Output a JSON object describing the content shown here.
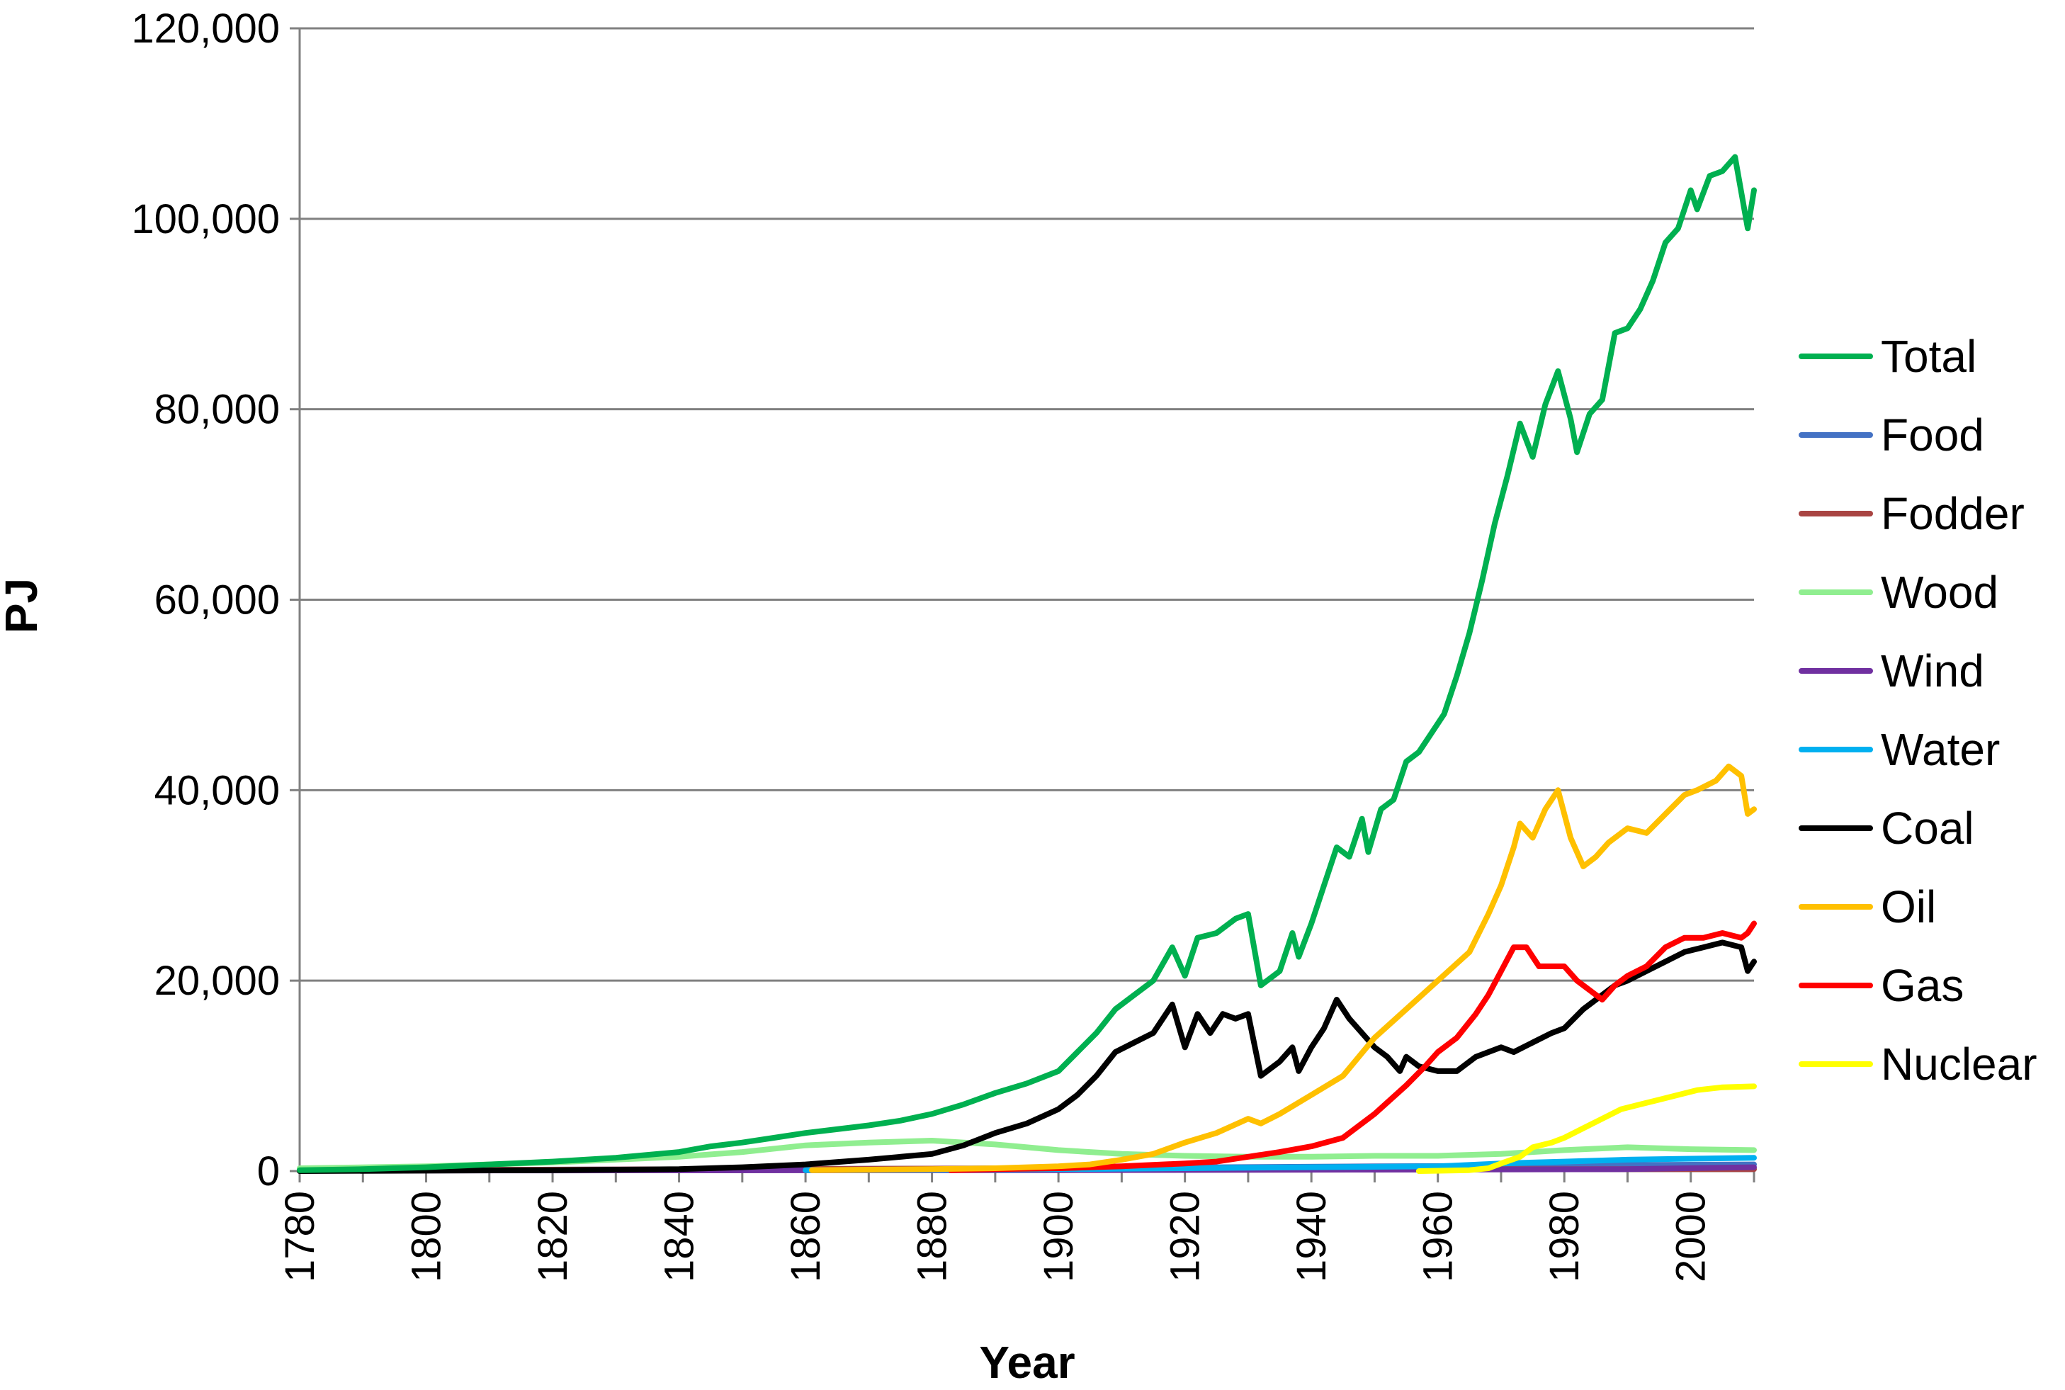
{
  "chart_data": {
    "type": "line",
    "title": "",
    "xlabel": "Year",
    "ylabel": "PJ",
    "xlim": [
      1780,
      2010
    ],
    "ylim": [
      0,
      120000
    ],
    "x_ticks": [
      "1780",
      "1800",
      "1820",
      "1840",
      "1860",
      "1880",
      "1900",
      "1920",
      "1940",
      "1960",
      "1980",
      "2000"
    ],
    "y_ticks": [
      "0",
      "20,000",
      "40,000",
      "60,000",
      "80,000",
      "100,000",
      "120,000"
    ],
    "grid": "horizontal",
    "legend_position": "right",
    "series": [
      {
        "name": "Total",
        "color": "#00b050",
        "points": [
          [
            1780,
            100
          ],
          [
            1790,
            200
          ],
          [
            1800,
            400
          ],
          [
            1810,
            700
          ],
          [
            1820,
            1000
          ],
          [
            1830,
            1400
          ],
          [
            1840,
            2000
          ],
          [
            1845,
            2600
          ],
          [
            1850,
            3000
          ],
          [
            1855,
            3500
          ],
          [
            1860,
            4000
          ],
          [
            1865,
            4400
          ],
          [
            1870,
            4800
          ],
          [
            1875,
            5300
          ],
          [
            1880,
            6000
          ],
          [
            1885,
            7000
          ],
          [
            1890,
            8200
          ],
          [
            1895,
            9200
          ],
          [
            1900,
            10500
          ],
          [
            1903,
            12500
          ],
          [
            1906,
            14500
          ],
          [
            1909,
            17000
          ],
          [
            1912,
            18500
          ],
          [
            1915,
            20000
          ],
          [
            1918,
            23500
          ],
          [
            1920,
            20500
          ],
          [
            1922,
            24500
          ],
          [
            1925,
            25000
          ],
          [
            1928,
            26500
          ],
          [
            1930,
            27000
          ],
          [
            1932,
            19500
          ],
          [
            1935,
            21000
          ],
          [
            1937,
            25000
          ],
          [
            1938,
            22500
          ],
          [
            1940,
            26000
          ],
          [
            1942,
            30000
          ],
          [
            1944,
            34000
          ],
          [
            1946,
            33000
          ],
          [
            1948,
            37000
          ],
          [
            1949,
            33500
          ],
          [
            1951,
            38000
          ],
          [
            1953,
            39000
          ],
          [
            1955,
            43000
          ],
          [
            1957,
            44000
          ],
          [
            1959,
            46000
          ],
          [
            1961,
            48000
          ],
          [
            1963,
            52000
          ],
          [
            1965,
            56500
          ],
          [
            1967,
            62000
          ],
          [
            1969,
            68000
          ],
          [
            1971,
            73000
          ],
          [
            1973,
            78500
          ],
          [
            1975,
            75000
          ],
          [
            1977,
            80500
          ],
          [
            1979,
            84000
          ],
          [
            1981,
            79000
          ],
          [
            1982,
            75500
          ],
          [
            1984,
            79500
          ],
          [
            1986,
            81000
          ],
          [
            1988,
            88000
          ],
          [
            1990,
            88500
          ],
          [
            1992,
            90500
          ],
          [
            1994,
            93500
          ],
          [
            1996,
            97500
          ],
          [
            1998,
            99000
          ],
          [
            2000,
            103000
          ],
          [
            2001,
            101000
          ],
          [
            2003,
            104500
          ],
          [
            2005,
            105000
          ],
          [
            2007,
            106500
          ],
          [
            2009,
            99000
          ],
          [
            2010,
            103000
          ]
        ]
      },
      {
        "name": "Food",
        "color": "#4472c4",
        "points": [
          [
            1780,
            100
          ],
          [
            1850,
            200
          ],
          [
            1900,
            300
          ],
          [
            1950,
            500
          ],
          [
            2010,
            700
          ]
        ]
      },
      {
        "name": "Fodder",
        "color": "#a94442",
        "points": [
          [
            1780,
            100
          ],
          [
            1850,
            200
          ],
          [
            1900,
            300
          ],
          [
            1950,
            200
          ],
          [
            2010,
            200
          ]
        ]
      },
      {
        "name": "Wood",
        "color": "#90ee90",
        "points": [
          [
            1780,
            300
          ],
          [
            1800,
            500
          ],
          [
            1820,
            900
          ],
          [
            1840,
            1500
          ],
          [
            1850,
            2000
          ],
          [
            1860,
            2700
          ],
          [
            1870,
            3000
          ],
          [
            1880,
            3200
          ],
          [
            1890,
            2800
          ],
          [
            1900,
            2200
          ],
          [
            1910,
            1800
          ],
          [
            1920,
            1600
          ],
          [
            1930,
            1500
          ],
          [
            1940,
            1500
          ],
          [
            1950,
            1600
          ],
          [
            1960,
            1600
          ],
          [
            1970,
            1800
          ],
          [
            1980,
            2200
          ],
          [
            1990,
            2500
          ],
          [
            2000,
            2300
          ],
          [
            2010,
            2200
          ]
        ]
      },
      {
        "name": "Wind",
        "color": "#7030a0",
        "points": [
          [
            1780,
            50
          ],
          [
            1900,
            100
          ],
          [
            1950,
            150
          ],
          [
            1990,
            200
          ],
          [
            2010,
            400
          ]
        ]
      },
      {
        "name": "Water",
        "color": "#00b0f0",
        "points": [
          [
            1860,
            100
          ],
          [
            1900,
            200
          ],
          [
            1920,
            300
          ],
          [
            1940,
            400
          ],
          [
            1960,
            500
          ],
          [
            1970,
            800
          ],
          [
            1980,
            1000
          ],
          [
            1990,
            1200
          ],
          [
            2000,
            1300
          ],
          [
            2010,
            1400
          ]
        ]
      },
      {
        "name": "Coal",
        "color": "#000000",
        "points": [
          [
            1780,
            0
          ],
          [
            1820,
            100
          ],
          [
            1840,
            200
          ],
          [
            1850,
            400
          ],
          [
            1860,
            700
          ],
          [
            1870,
            1200
          ],
          [
            1880,
            1800
          ],
          [
            1885,
            2700
          ],
          [
            1890,
            4000
          ],
          [
            1895,
            5000
          ],
          [
            1900,
            6500
          ],
          [
            1903,
            8000
          ],
          [
            1906,
            10000
          ],
          [
            1909,
            12500
          ],
          [
            1912,
            13500
          ],
          [
            1915,
            14500
          ],
          [
            1918,
            17500
          ],
          [
            1920,
            13000
          ],
          [
            1922,
            16500
          ],
          [
            1924,
            14500
          ],
          [
            1926,
            16500
          ],
          [
            1928,
            16000
          ],
          [
            1930,
            16500
          ],
          [
            1932,
            10000
          ],
          [
            1935,
            11500
          ],
          [
            1937,
            13000
          ],
          [
            1938,
            10500
          ],
          [
            1940,
            13000
          ],
          [
            1942,
            15000
          ],
          [
            1944,
            18000
          ],
          [
            1946,
            16000
          ],
          [
            1948,
            14500
          ],
          [
            1950,
            13000
          ],
          [
            1952,
            12000
          ],
          [
            1954,
            10500
          ],
          [
            1955,
            12000
          ],
          [
            1957,
            11000
          ],
          [
            1960,
            10500
          ],
          [
            1963,
            10500
          ],
          [
            1966,
            12000
          ],
          [
            1970,
            13000
          ],
          [
            1972,
            12500
          ],
          [
            1975,
            13500
          ],
          [
            1978,
            14500
          ],
          [
            1980,
            15000
          ],
          [
            1983,
            17000
          ],
          [
            1986,
            18500
          ],
          [
            1988,
            19500
          ],
          [
            1990,
            20000
          ],
          [
            1993,
            21000
          ],
          [
            1996,
            22000
          ],
          [
            1999,
            23000
          ],
          [
            2002,
            23500
          ],
          [
            2005,
            24000
          ],
          [
            2008,
            23500
          ],
          [
            2009,
            21000
          ],
          [
            2010,
            22000
          ]
        ]
      },
      {
        "name": "Oil",
        "color": "#ffc000",
        "points": [
          [
            1861,
            100
          ],
          [
            1880,
            200
          ],
          [
            1890,
            300
          ],
          [
            1900,
            500
          ],
          [
            1905,
            700
          ],
          [
            1910,
            1200
          ],
          [
            1915,
            1800
          ],
          [
            1920,
            3000
          ],
          [
            1925,
            4000
          ],
          [
            1930,
            5500
          ],
          [
            1932,
            5000
          ],
          [
            1935,
            6000
          ],
          [
            1940,
            8000
          ],
          [
            1945,
            10000
          ],
          [
            1950,
            14000
          ],
          [
            1955,
            17000
          ],
          [
            1960,
            20000
          ],
          [
            1965,
            23000
          ],
          [
            1968,
            27000
          ],
          [
            1970,
            30000
          ],
          [
            1972,
            34000
          ],
          [
            1973,
            36500
          ],
          [
            1975,
            35000
          ],
          [
            1977,
            38000
          ],
          [
            1979,
            40000
          ],
          [
            1981,
            35000
          ],
          [
            1983,
            32000
          ],
          [
            1985,
            33000
          ],
          [
            1987,
            34500
          ],
          [
            1990,
            36000
          ],
          [
            1993,
            35500
          ],
          [
            1996,
            37500
          ],
          [
            1999,
            39500
          ],
          [
            2001,
            40000
          ],
          [
            2004,
            41000
          ],
          [
            2006,
            42500
          ],
          [
            2008,
            41500
          ],
          [
            2009,
            37500
          ],
          [
            2010,
            38000
          ]
        ]
      },
      {
        "name": "Gas",
        "color": "#ff0000",
        "points": [
          [
            1883,
            100
          ],
          [
            1890,
            200
          ],
          [
            1900,
            300
          ],
          [
            1910,
            500
          ],
          [
            1920,
            800
          ],
          [
            1925,
            1000
          ],
          [
            1930,
            1500
          ],
          [
            1935,
            2000
          ],
          [
            1940,
            2600
          ],
          [
            1945,
            3500
          ],
          [
            1950,
            6000
          ],
          [
            1955,
            9000
          ],
          [
            1958,
            11000
          ],
          [
            1960,
            12500
          ],
          [
            1963,
            14000
          ],
          [
            1966,
            16500
          ],
          [
            1968,
            18500
          ],
          [
            1970,
            21000
          ],
          [
            1972,
            23500
          ],
          [
            1974,
            23500
          ],
          [
            1976,
            21500
          ],
          [
            1978,
            21500
          ],
          [
            1980,
            21500
          ],
          [
            1982,
            20000
          ],
          [
            1984,
            19000
          ],
          [
            1986,
            18000
          ],
          [
            1988,
            19500
          ],
          [
            1990,
            20500
          ],
          [
            1993,
            21500
          ],
          [
            1996,
            23500
          ],
          [
            1999,
            24500
          ],
          [
            2002,
            24500
          ],
          [
            2005,
            25000
          ],
          [
            2008,
            24500
          ],
          [
            2009,
            25000
          ],
          [
            2010,
            26000
          ]
        ]
      },
      {
        "name": "Nuclear",
        "color": "#ffff00",
        "points": [
          [
            1957,
            0
          ],
          [
            1965,
            100
          ],
          [
            1968,
            300
          ],
          [
            1970,
            800
          ],
          [
            1973,
            1500
          ],
          [
            1975,
            2500
          ],
          [
            1978,
            3000
          ],
          [
            1980,
            3500
          ],
          [
            1983,
            4500
          ],
          [
            1986,
            5500
          ],
          [
            1989,
            6500
          ],
          [
            1992,
            7000
          ],
          [
            1995,
            7500
          ],
          [
            1998,
            8000
          ],
          [
            2001,
            8500
          ],
          [
            2005,
            8800
          ],
          [
            2010,
            8900
          ]
        ]
      }
    ]
  }
}
